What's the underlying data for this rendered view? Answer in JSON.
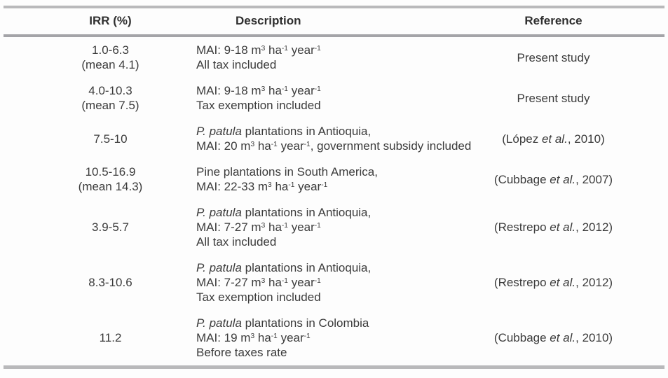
{
  "page": {
    "background_color": "#fdfdfd",
    "rule_color": "#b9b9bb",
    "header_rule_color": "#a4a4a8",
    "text_color": "#3b3b3b"
  },
  "table": {
    "columns": [
      {
        "key": "irr",
        "label": "IRR (%)"
      },
      {
        "key": "description",
        "label": "Description"
      },
      {
        "key": "reference",
        "label": "Reference"
      }
    ],
    "rows": [
      {
        "irr": [
          "1.0-6.3",
          "(mean 4.1)"
        ],
        "description": [
          [
            {
              "t": "MAI: 9-18 m"
            },
            {
              "t": "3",
              "sup": true
            },
            {
              "t": " ha"
            },
            {
              "t": "-1",
              "sup": true
            },
            {
              "t": " year"
            },
            {
              "t": "-1",
              "sup": true
            }
          ],
          [
            {
              "t": "All tax included"
            }
          ]
        ],
        "reference": [
          {
            "t": "Present study"
          }
        ]
      },
      {
        "irr": [
          "4.0-10.3",
          "(mean 7.5)"
        ],
        "description": [
          [
            {
              "t": "MAI: 9-18 m"
            },
            {
              "t": "3",
              "sup": true
            },
            {
              "t": " ha"
            },
            {
              "t": "-1",
              "sup": true
            },
            {
              "t": " year"
            },
            {
              "t": "-1",
              "sup": true
            }
          ],
          [
            {
              "t": "Tax exemption included"
            }
          ]
        ],
        "reference": [
          {
            "t": "Present study"
          }
        ]
      },
      {
        "irr": [
          "7.5-10"
        ],
        "description": [
          [
            {
              "t": "P. patula",
              "i": true
            },
            {
              "t": " plantations in Antioquia,"
            }
          ],
          [
            {
              "t": "MAI: 20 m"
            },
            {
              "t": "3",
              "sup": true
            },
            {
              "t": " ha"
            },
            {
              "t": "-1",
              "sup": true
            },
            {
              "t": " year"
            },
            {
              "t": "-1",
              "sup": true
            },
            {
              "t": ", government subsidy included"
            }
          ]
        ],
        "reference": [
          {
            "t": "(López "
          },
          {
            "t": "et al.",
            "i": true
          },
          {
            "t": ", 2010)"
          }
        ]
      },
      {
        "irr": [
          "10.5-16.9",
          "(mean 14.3)"
        ],
        "description": [
          [
            {
              "t": "Pine plantations in South America,"
            }
          ],
          [
            {
              "t": "MAI: 22-33 m"
            },
            {
              "t": "3",
              "sup": true
            },
            {
              "t": " ha"
            },
            {
              "t": "-1",
              "sup": true
            },
            {
              "t": " year"
            },
            {
              "t": "-1",
              "sup": true
            }
          ]
        ],
        "reference": [
          {
            "t": "(Cubbage "
          },
          {
            "t": "et al.",
            "i": true
          },
          {
            "t": ", 2007)"
          }
        ]
      },
      {
        "irr": [
          "3.9-5.7"
        ],
        "description": [
          [
            {
              "t": "P. patula",
              "i": true
            },
            {
              "t": " plantations in Antioquia,"
            }
          ],
          [
            {
              "t": "MAI: 7-27 m"
            },
            {
              "t": "3",
              "sup": true
            },
            {
              "t": " ha"
            },
            {
              "t": "-1",
              "sup": true
            },
            {
              "t": " year"
            },
            {
              "t": "-1",
              "sup": true
            }
          ],
          [
            {
              "t": "All tax included"
            }
          ]
        ],
        "reference": [
          {
            "t": "(Restrepo "
          },
          {
            "t": "et al.",
            "i": true
          },
          {
            "t": ", 2012)"
          }
        ]
      },
      {
        "irr": [
          "8.3-10.6"
        ],
        "description": [
          [
            {
              "t": "P. patula",
              "i": true
            },
            {
              "t": " plantations in Antioquia,"
            }
          ],
          [
            {
              "t": "MAI: 7-27 m"
            },
            {
              "t": "3",
              "sup": true
            },
            {
              "t": " ha"
            },
            {
              "t": "-1",
              "sup": true
            },
            {
              "t": " year"
            },
            {
              "t": "-1",
              "sup": true
            }
          ],
          [
            {
              "t": "Tax exemption included"
            }
          ]
        ],
        "reference": [
          {
            "t": "(Restrepo "
          },
          {
            "t": "et al.",
            "i": true
          },
          {
            "t": ", 2012)"
          }
        ]
      },
      {
        "irr": [
          "11.2"
        ],
        "description": [
          [
            {
              "t": "P. patula",
              "i": true
            },
            {
              "t": " plantations in Colombia"
            }
          ],
          [
            {
              "t": "MAI: 19 m"
            },
            {
              "t": "3",
              "sup": true
            },
            {
              "t": " ha"
            },
            {
              "t": "-1",
              "sup": true
            },
            {
              "t": " year"
            },
            {
              "t": "-1",
              "sup": true
            }
          ],
          [
            {
              "t": "Before taxes rate"
            }
          ]
        ],
        "reference": [
          {
            "t": "(Cubbage "
          },
          {
            "t": "et al.",
            "i": true
          },
          {
            "t": ", 2010)"
          }
        ]
      }
    ]
  }
}
